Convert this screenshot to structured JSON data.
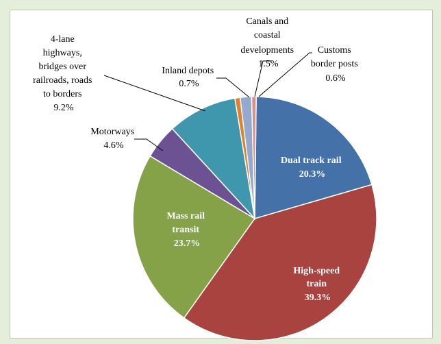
{
  "chart_data": {
    "type": "pie",
    "title": "",
    "slices": [
      {
        "label": "Dual track rail",
        "value_label": "20.3%",
        "value": 20.3,
        "color": "#4472a8"
      },
      {
        "label": "High-speed train",
        "value_label": "39.3%",
        "value": 39.3,
        "color": "#a8433f"
      },
      {
        "label": "Mass rail transit",
        "value_label": "23.7%",
        "value": 23.7,
        "color": "#86a249"
      },
      {
        "label": "Motorways",
        "value_label": "4.6%",
        "value": 4.6,
        "color": "#6c5292"
      },
      {
        "label": "4-lane highways, bridges over railroads, roads to borders",
        "value_label": "9.2%",
        "value": 9.2,
        "color": "#3e97ac"
      },
      {
        "label": "Inland depots",
        "value_label": "0.7%",
        "value": 0.7,
        "color": "#e1802d"
      },
      {
        "label": "Canals and coastal developments",
        "value_label": "1.5%",
        "value": 1.5,
        "color": "#93a9cf"
      },
      {
        "label": "Customs border posts",
        "value_label": "0.6%",
        "value": 0.6,
        "color": "#d6908e"
      }
    ],
    "label_lines": {
      "dual": [
        "Dual track rail",
        "20.3%"
      ],
      "hst": [
        "High-speed",
        "train",
        "39.3%"
      ],
      "mass": [
        "Mass rail",
        "transit",
        "23.7%"
      ],
      "motor": [
        "Motorways",
        "4.6%"
      ],
      "fourlane": [
        "4-lane",
        "highways,",
        "bridges over",
        "railroads, roads",
        "to borders",
        "9.2%"
      ],
      "inland": [
        "Inland depots",
        "0.7%"
      ],
      "canals": [
        "Canals and",
        "coastal",
        "developments",
        "1.5%"
      ],
      "customs": [
        "Customs",
        "border posts",
        "0.6%"
      ]
    }
  }
}
